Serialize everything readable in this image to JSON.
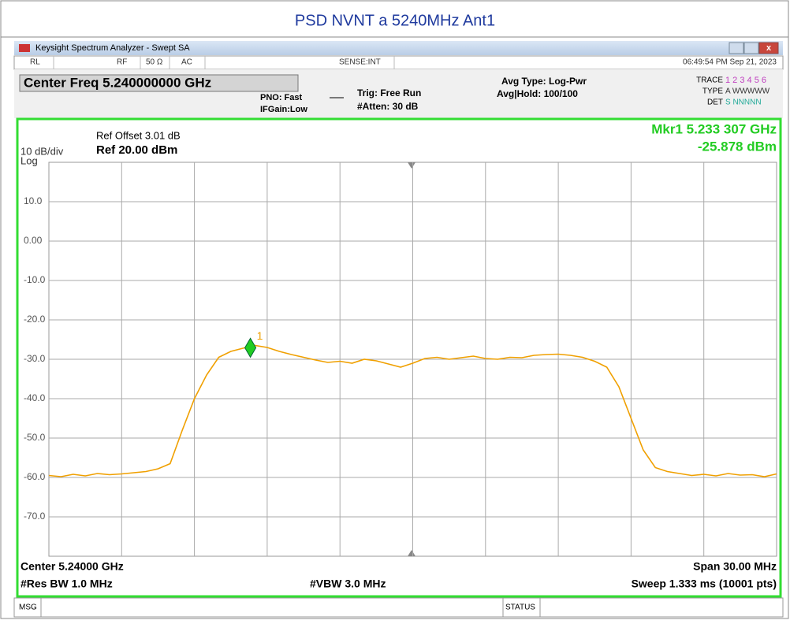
{
  "title": "PSD NVNT a 5240MHz Ant1",
  "window": {
    "app_title": "Keysight Spectrum Analyzer - Swept SA",
    "status_items": [
      "RL",
      "RF",
      "50 Ω",
      "AC",
      "SENSE:INT"
    ],
    "datetime": "06:49:54 PM Sep 21, 2023",
    "center_freq": "Center Freq 5.240000000 GHz",
    "pno": "PNO: Fast",
    "ifgain": "IFGain:Low",
    "trig": "Trig: Free Run",
    "atten": "#Atten: 30 dB",
    "avg_type": "Avg Type: Log-Pwr",
    "avg_hold": "Avg|Hold: 100/100",
    "trace_label": "TRACE",
    "trace_values": "1 2 3 4 5 6",
    "type_label": "TYPE",
    "type_values": "A WWWWW",
    "det_label": "DET",
    "det_values": "S NNNNN",
    "msg": "MSG",
    "status": "STATUS"
  },
  "chart_data": {
    "type": "line",
    "ref_offset": "Ref Offset 3.01 dB",
    "scale": "10 dB/div",
    "ref_level": "Ref 20.00 dBm",
    "scale_type": "Log",
    "marker_readout": [
      "Mkr1 5.233 307 GHz",
      "-25.878 dBm"
    ],
    "marker": {
      "label": "1",
      "x": 5.233307,
      "y": -25.878,
      "color": "#22cc22"
    },
    "footer_left": [
      "Center 5.24000 GHz",
      "#Res BW 1.0 MHz"
    ],
    "footer_mid": "#VBW 3.0 MHz",
    "footer_right": [
      "Span 30.00 MHz",
      "Sweep  1.333 ms (10001 pts)"
    ],
    "xlim": [
      5.225,
      5.255
    ],
    "ylim": [
      -80,
      20
    ],
    "yticks": [
      {
        "value": 10,
        "label": "10.0"
      },
      {
        "value": 0,
        "label": "0.00"
      },
      {
        "value": -10,
        "label": "-10.0"
      },
      {
        "value": -20,
        "label": "-20.0"
      },
      {
        "value": -30,
        "label": "-30.0"
      },
      {
        "value": -40,
        "label": "-40.0"
      },
      {
        "value": -50,
        "label": "-50.0"
      },
      {
        "value": -60,
        "label": "-60.0"
      },
      {
        "value": -70,
        "label": "-70.0"
      }
    ],
    "grid": true,
    "color": "#f0a000",
    "x": [
      5.225,
      5.2255,
      5.226,
      5.2265,
      5.227,
      5.2275,
      5.228,
      5.2285,
      5.229,
      5.2295,
      5.23,
      5.2305,
      5.231,
      5.2315,
      5.232,
      5.2325,
      5.233,
      5.2335,
      5.234,
      5.2345,
      5.235,
      5.2355,
      5.236,
      5.2365,
      5.237,
      5.2375,
      5.238,
      5.2385,
      5.239,
      5.2395,
      5.24,
      5.2405,
      5.241,
      5.2415,
      5.242,
      5.2425,
      5.243,
      5.2435,
      5.244,
      5.2445,
      5.245,
      5.2455,
      5.246,
      5.2465,
      5.247,
      5.2475,
      5.248,
      5.2485,
      5.249,
      5.2495,
      5.25,
      5.2505,
      5.251,
      5.2515,
      5.252,
      5.2525,
      5.253,
      5.2535,
      5.254,
      5.2545,
      5.255
    ],
    "values": [
      -59.5,
      -59.8,
      -59.2,
      -59.6,
      -59.0,
      -59.3,
      -59.1,
      -58.8,
      -58.5,
      -57.8,
      -56.5,
      -48,
      -40,
      -34,
      -29.5,
      -28.0,
      -27.2,
      -26.5,
      -27.0,
      -28.0,
      -28.8,
      -29.5,
      -30.2,
      -30.8,
      -30.5,
      -31.0,
      -30.0,
      -30.4,
      -31.2,
      -32.0,
      -31.0,
      -29.8,
      -29.5,
      -30.0,
      -29.6,
      -29.2,
      -29.8,
      -30.0,
      -29.5,
      -29.6,
      -29.0,
      -28.8,
      -28.7,
      -29.0,
      -29.5,
      -30.5,
      -32,
      -37,
      -45,
      -53,
      -57.5,
      -58.5,
      -59.0,
      -59.5,
      -59.2,
      -59.6,
      -59.0,
      -59.4,
      -59.3,
      -59.8,
      -59.1
    ]
  }
}
